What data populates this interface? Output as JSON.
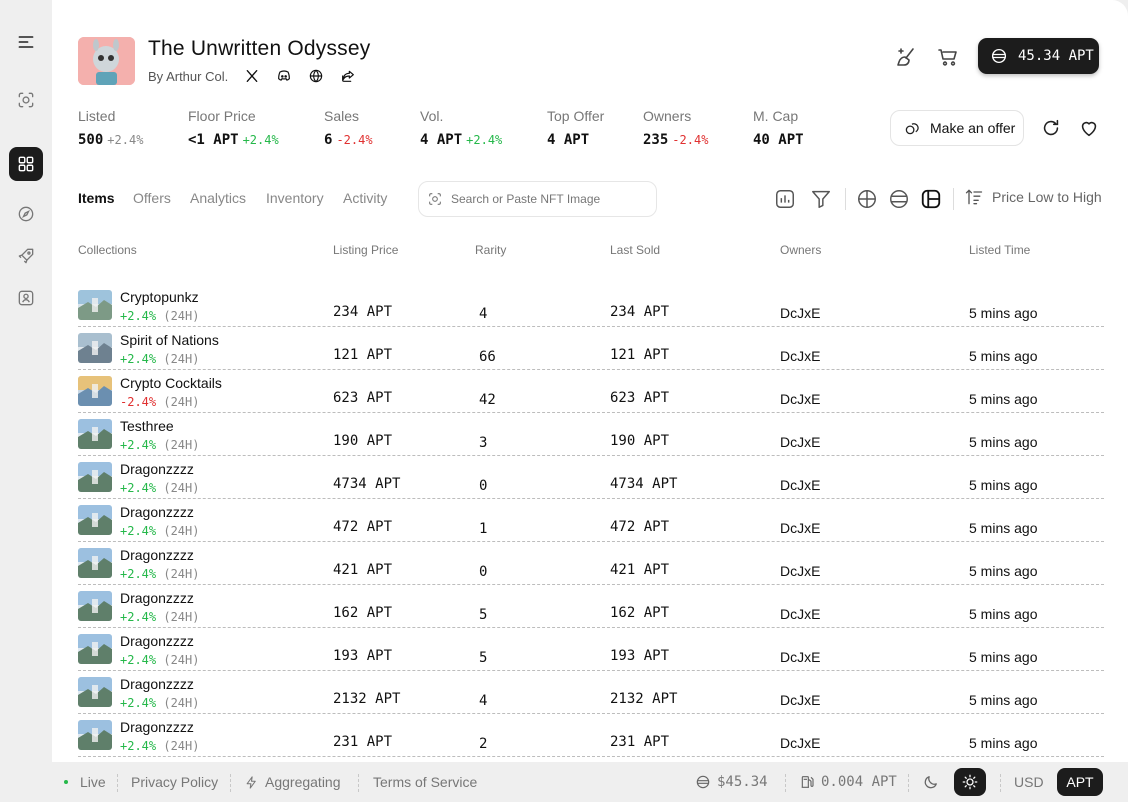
{
  "collection": {
    "title": "The Unwritten Odyssey",
    "byline": "By Arthur Col."
  },
  "wallet": {
    "balance": "45.34 APT"
  },
  "stats": [
    {
      "label": "Listed",
      "value": "500",
      "change": "+2.4%",
      "trend": "neutral"
    },
    {
      "label": "Floor Price",
      "value": "<1 APT",
      "change": "+2.4%",
      "trend": "up"
    },
    {
      "label": "Sales",
      "value": "6",
      "change": "-2.4%",
      "trend": "down"
    },
    {
      "label": "Vol.",
      "value": "4 APT",
      "change": "+2.4%",
      "trend": "up"
    },
    {
      "label": "Top Offer",
      "value": "4 APT",
      "change": "",
      "trend": "neutral"
    },
    {
      "label": "Owners",
      "value": "235",
      "change": "-2.4%",
      "trend": "down"
    },
    {
      "label": "M. Cap",
      "value": "40 APT",
      "change": "",
      "trend": "neutral"
    }
  ],
  "actions": {
    "make_offer": "Make an offer"
  },
  "tabs": [
    "Items",
    "Offers",
    "Analytics",
    "Inventory",
    "Activity"
  ],
  "search": {
    "placeholder": "Search or Paste NFT Image"
  },
  "sort": {
    "label": "Price Low to High"
  },
  "table": {
    "headers": [
      "Collections",
      "Listing Price",
      "Rarity",
      "Last Sold",
      "Owners",
      "Listed Time"
    ],
    "period": "(24H)",
    "rows": [
      {
        "name": "Cryptopunkz",
        "change": "+2.4%",
        "trend": "up",
        "price": "234 APT",
        "rarity": "4",
        "last_sold": "234 APT",
        "owner": "DcJxE",
        "time": "5 mins ago"
      },
      {
        "name": "Spirit of Nations",
        "change": "+2.4%",
        "trend": "up",
        "price": "121 APT",
        "rarity": "66",
        "last_sold": "121 APT",
        "owner": "DcJxE",
        "time": "5 mins ago"
      },
      {
        "name": "Crypto Cocktails",
        "change": "-2.4%",
        "trend": "down",
        "price": "623 APT",
        "rarity": "42",
        "last_sold": "623 APT",
        "owner": "DcJxE",
        "time": "5 mins ago"
      },
      {
        "name": "Testhree",
        "change": "+2.4%",
        "trend": "up",
        "price": "190 APT",
        "rarity": "3",
        "last_sold": "190 APT",
        "owner": "DcJxE",
        "time": "5 mins ago"
      },
      {
        "name": "Dragonzzzz",
        "change": "+2.4%",
        "trend": "up",
        "price": "4734 APT",
        "rarity": "0",
        "last_sold": "4734 APT",
        "owner": "DcJxE",
        "time": "5 mins ago"
      },
      {
        "name": "Dragonzzzz",
        "change": "+2.4%",
        "trend": "up",
        "price": "472 APT",
        "rarity": "1",
        "last_sold": "472 APT",
        "owner": "DcJxE",
        "time": "5 mins ago"
      },
      {
        "name": "Dragonzzzz",
        "change": "+2.4%",
        "trend": "up",
        "price": "421 APT",
        "rarity": "0",
        "last_sold": "421 APT",
        "owner": "DcJxE",
        "time": "5 mins ago"
      },
      {
        "name": "Dragonzzzz",
        "change": "+2.4%",
        "trend": "up",
        "price": "162 APT",
        "rarity": "5",
        "last_sold": "162 APT",
        "owner": "DcJxE",
        "time": "5 mins ago"
      },
      {
        "name": "Dragonzzzz",
        "change": "+2.4%",
        "trend": "up",
        "price": "193 APT",
        "rarity": "5",
        "last_sold": "193 APT",
        "owner": "DcJxE",
        "time": "5 mins ago"
      },
      {
        "name": "Dragonzzzz",
        "change": "+2.4%",
        "trend": "up",
        "price": "2132 APT",
        "rarity": "4",
        "last_sold": "2132 APT",
        "owner": "DcJxE",
        "time": "5 mins ago"
      },
      {
        "name": "Dragonzzzz",
        "change": "+2.4%",
        "trend": "up",
        "price": "231 APT",
        "rarity": "2",
        "last_sold": "231 APT",
        "owner": "DcJxE",
        "time": "5 mins ago"
      }
    ]
  },
  "footer": {
    "live": "Live",
    "privacy": "Privacy Policy",
    "aggregating": "Aggregating",
    "terms": "Terms of Service",
    "price": "$45.34",
    "gas": "0.004 APT",
    "currency_usd": "USD",
    "currency_apt": "APT"
  },
  "colors": {
    "up": "#25b84a",
    "down": "#e03131",
    "dark": "#1c1c1c"
  }
}
